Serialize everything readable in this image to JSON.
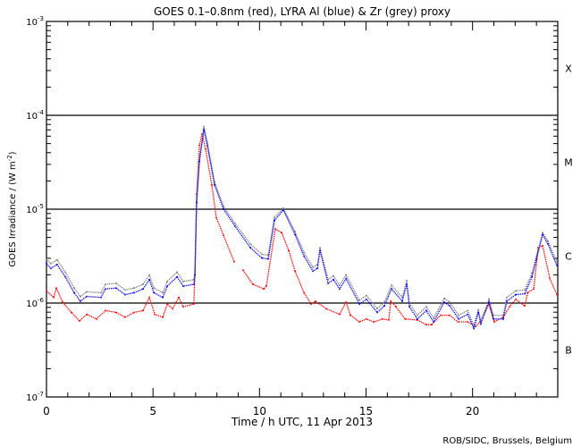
{
  "chart_data": {
    "type": "line",
    "title": "GOES 0.1–0.8nm (red), LYRA Al (blue) & Zr (grey) proxy",
    "xlabel": "Time / h UTC, 11 Apr 2013",
    "ylabel": "GOES Irradiance / (W m",
    "ylabel_sup": "-2",
    "ylabel_end": ")",
    "credit": "ROB/SIDC, Brussels, Belgium",
    "xlim": [
      0,
      24
    ],
    "ylim_log10": [
      -7,
      -3
    ],
    "yscale": "log",
    "x_ticks": [
      0,
      5,
      10,
      15,
      20
    ],
    "x_tick_labels": [
      "0",
      "5",
      "10",
      "15",
      "20"
    ],
    "y_ticks_log10": [
      -3,
      -4,
      -5,
      -6,
      -7
    ],
    "y_tick_labels": [
      {
        "base": "10",
        "exp": "-3"
      },
      {
        "base": "10",
        "exp": "-4"
      },
      {
        "base": "10",
        "exp": "-5"
      },
      {
        "base": "10",
        "exp": "-6"
      },
      {
        "base": "10",
        "exp": "-7"
      }
    ],
    "reference_lines_log10": [
      -4,
      -5,
      -6
    ],
    "flare_classes": [
      {
        "label": "X",
        "log10_center": -3.5
      },
      {
        "label": "M",
        "log10_center": -4.5
      },
      {
        "label": "C",
        "log10_center": -5.5
      },
      {
        "label": "B",
        "log10_center": -6.5
      }
    ],
    "series": [
      {
        "name": "GOES 0.1-0.8nm",
        "color": "#ff0000",
        "x": [
          0.0,
          0.34,
          0.46,
          0.76,
          1.17,
          1.55,
          1.89,
          2.35,
          2.77,
          3.27,
          3.69,
          4.11,
          4.53,
          4.83,
          5.08,
          5.46,
          5.67,
          5.92,
          6.21,
          6.42,
          6.92,
          6.97,
          7.05,
          7.18,
          7.3,
          7.47,
          7.76,
          7.97,
          8.31,
          8.81,
          null,
          9.23,
          9.69,
          10.2,
          10.32,
          10.74,
          11.04,
          11.37,
          11.67,
          12.09,
          12.42,
          12.63,
          13.13,
          13.76,
          14.06,
          14.27,
          14.69,
          15.02,
          15.36,
          15.78,
          16.07,
          16.16,
          16.41,
          16.83,
          17.41,
          17.83,
          18.08,
          18.5,
          18.93,
          19.31,
          19.77,
          20.14,
          20.35,
          20.77,
          21.02,
          21.44,
          21.74,
          22.03,
          22.45,
          22.58,
          22.87,
          23.08,
          23.29,
          23.63,
          23.96
        ],
        "log10_y": [
          -5.87,
          -5.94,
          -5.84,
          -5.99,
          -6.1,
          -6.19,
          -6.12,
          -6.17,
          -6.08,
          -6.1,
          -6.15,
          -6.1,
          -6.08,
          -5.94,
          -6.12,
          -6.15,
          -6.01,
          -6.06,
          -5.94,
          -6.04,
          -6.01,
          -5.66,
          -4.84,
          -4.32,
          -4.2,
          -4.36,
          -4.74,
          -5.09,
          -5.28,
          -5.56,
          null,
          -5.65,
          -5.8,
          -5.85,
          -5.82,
          -5.21,
          -5.25,
          -5.44,
          -5.66,
          -5.89,
          -6.01,
          -5.98,
          -6.06,
          -6.12,
          -5.99,
          -6.13,
          -6.2,
          -6.17,
          -6.2,
          -6.17,
          -6.18,
          -5.98,
          -6.04,
          -6.17,
          -6.18,
          -6.23,
          -6.23,
          -6.13,
          -6.13,
          -6.2,
          -6.2,
          -6.25,
          -6.2,
          -6.01,
          -6.2,
          -6.15,
          -6.04,
          -5.96,
          -6.03,
          -5.89,
          -5.85,
          -5.41,
          -5.39,
          -5.74,
          -5.91
        ]
      },
      {
        "name": "LYRA Zr proxy",
        "color": "#808080",
        "x": [
          0.0,
          0.21,
          0.5,
          0.88,
          1.3,
          1.59,
          1.89,
          2.56,
          2.77,
          3.27,
          3.69,
          4.11,
          4.53,
          4.83,
          5.04,
          5.46,
          5.67,
          6.13,
          6.42,
          6.92,
          6.97,
          7.05,
          7.18,
          7.39,
          7.55,
          7.89,
          8.31,
          8.85,
          9.57,
          10.11,
          10.41,
          10.7,
          11.12,
          11.67,
          12.09,
          12.51,
          12.72,
          12.84,
          13.22,
          13.47,
          13.76,
          14.06,
          14.69,
          15.02,
          15.53,
          15.86,
          16.2,
          16.7,
          16.91,
          17.04,
          17.41,
          17.83,
          18.17,
          18.67,
          18.93,
          19.35,
          19.77,
          20.06,
          20.27,
          20.39,
          20.77,
          20.98,
          21.44,
          21.61,
          22.03,
          22.45,
          22.79,
          23.0,
          23.29,
          23.54,
          23.96
        ],
        "log10_y": [
          -5.53,
          -5.58,
          -5.54,
          -5.67,
          -5.84,
          -5.93,
          -5.88,
          -5.89,
          -5.8,
          -5.79,
          -5.86,
          -5.84,
          -5.8,
          -5.7,
          -5.84,
          -5.89,
          -5.77,
          -5.67,
          -5.77,
          -5.75,
          -5.66,
          -4.91,
          -4.47,
          -4.12,
          -4.29,
          -4.71,
          -4.97,
          -5.15,
          -5.37,
          -5.48,
          -5.49,
          -5.09,
          -4.99,
          -5.24,
          -5.46,
          -5.62,
          -5.59,
          -5.41,
          -5.75,
          -5.71,
          -5.81,
          -5.7,
          -5.97,
          -5.92,
          -6.06,
          -5.99,
          -5.81,
          -5.94,
          -5.76,
          -6.0,
          -6.13,
          -6.04,
          -6.16,
          -5.95,
          -5.99,
          -6.13,
          -6.08,
          -6.24,
          -6.07,
          -6.19,
          -5.96,
          -6.13,
          -6.13,
          -5.94,
          -5.87,
          -5.86,
          -5.68,
          -5.5,
          -5.25,
          -5.34,
          -5.56
        ]
      },
      {
        "name": "LYRA Al proxy",
        "color": "#0000ff",
        "x": [
          0.0,
          0.21,
          0.5,
          0.88,
          1.3,
          1.59,
          1.89,
          2.56,
          2.77,
          3.27,
          3.69,
          4.11,
          4.53,
          4.83,
          5.04,
          5.46,
          5.67,
          6.13,
          6.42,
          6.92,
          6.97,
          7.05,
          7.18,
          7.39,
          7.55,
          7.89,
          8.31,
          8.85,
          9.57,
          10.11,
          10.41,
          10.7,
          11.12,
          11.67,
          12.09,
          12.51,
          12.72,
          12.84,
          13.22,
          13.47,
          13.76,
          14.06,
          14.69,
          15.02,
          15.53,
          15.86,
          16.2,
          16.7,
          16.91,
          17.04,
          17.41,
          17.83,
          18.17,
          18.67,
          18.93,
          19.35,
          19.77,
          20.06,
          20.27,
          20.39,
          20.77,
          20.98,
          21.44,
          21.61,
          22.03,
          22.45,
          22.79,
          23.0,
          23.29,
          23.54,
          23.96
        ],
        "log10_y": [
          -5.58,
          -5.63,
          -5.59,
          -5.72,
          -5.89,
          -5.98,
          -5.93,
          -5.94,
          -5.85,
          -5.84,
          -5.91,
          -5.89,
          -5.85,
          -5.75,
          -5.89,
          -5.94,
          -5.82,
          -5.72,
          -5.82,
          -5.8,
          -5.7,
          -4.93,
          -4.49,
          -4.15,
          -4.32,
          -4.74,
          -5.0,
          -5.18,
          -5.41,
          -5.52,
          -5.53,
          -5.12,
          -5.01,
          -5.27,
          -5.5,
          -5.66,
          -5.63,
          -5.44,
          -5.79,
          -5.75,
          -5.85,
          -5.74,
          -6.01,
          -5.96,
          -6.1,
          -6.03,
          -5.85,
          -5.98,
          -5.8,
          -6.04,
          -6.17,
          -6.08,
          -6.2,
          -5.99,
          -6.03,
          -6.17,
          -6.12,
          -6.27,
          -6.1,
          -6.22,
          -5.99,
          -6.17,
          -6.17,
          -5.98,
          -5.91,
          -5.9,
          -5.72,
          -5.53,
          -5.27,
          -5.37,
          -5.6
        ]
      }
    ],
    "grid": false,
    "legend": "none (colours named in title)"
  }
}
